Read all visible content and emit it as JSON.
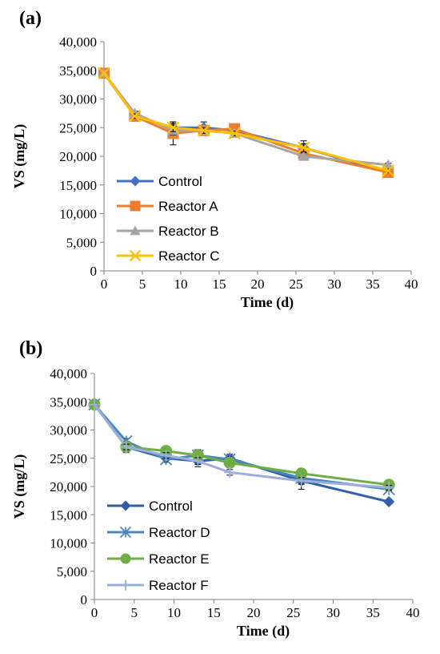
{
  "chart_data": [
    {
      "panel_label": "(a)",
      "type": "line",
      "xlabel": "Time (d)",
      "ylabel": "VS (mg/L)",
      "xlim": [
        0,
        40
      ],
      "ylim": [
        0,
        40000
      ],
      "x_ticks": [
        "0",
        "5",
        "10",
        "15",
        "20",
        "25",
        "30",
        "35",
        "40"
      ],
      "y_ticks": [
        "0",
        "5,000",
        "10,000",
        "15,000",
        "20,000",
        "25,000",
        "30,000",
        "35,000",
        "40,000"
      ],
      "grid": false,
      "legend_position": "bottom-left",
      "x": [
        0,
        4,
        9,
        13,
        17,
        26,
        37
      ],
      "series": [
        {
          "name": "Control",
          "color": "#4472C4",
          "marker": "diamond",
          "values": [
            34500,
            27000,
            25000,
            25000,
            24500,
            21500,
            17200
          ],
          "errors": [
            0,
            500,
            1000,
            1000,
            300,
            1200,
            300
          ]
        },
        {
          "name": "Reactor A",
          "color": "#ED7D31",
          "marker": "square",
          "values": [
            34500,
            27000,
            24000,
            24500,
            24800,
            20500,
            17200
          ],
          "errors": [
            0,
            400,
            2000,
            600,
            400,
            800,
            300
          ]
        },
        {
          "name": "Reactor B",
          "color": "#A5A5A5",
          "marker": "triangle",
          "values": [
            34500,
            27500,
            24500,
            24500,
            24000,
            20000,
            18500
          ],
          "errors": [
            0,
            300,
            800,
            500,
            400,
            600,
            300
          ]
        },
        {
          "name": "Reactor C",
          "color": "#FFC000",
          "marker": "x",
          "values": [
            34500,
            27000,
            25000,
            24500,
            24000,
            21500,
            17500
          ],
          "errors": [
            0,
            400,
            700,
            500,
            400,
            700,
            300
          ]
        }
      ]
    },
    {
      "panel_label": "(b)",
      "type": "line",
      "xlabel": "Time (d)",
      "ylabel": "VS (mg/L)",
      "xlim": [
        0,
        40
      ],
      "ylim": [
        0,
        40000
      ],
      "x_ticks": [
        "0",
        "5",
        "10",
        "15",
        "20",
        "25",
        "30",
        "35",
        "40"
      ],
      "y_ticks": [
        "0",
        "5,000",
        "10,000",
        "15,000",
        "20,000",
        "25,000",
        "30,000",
        "35,000",
        "40,000"
      ],
      "grid": false,
      "legend_position": "bottom-left",
      "x": [
        0,
        4,
        9,
        13,
        17,
        26,
        37
      ],
      "series": [
        {
          "name": "Control",
          "color": "#2E5FA8",
          "marker": "diamond",
          "values": [
            34500,
            27000,
            25000,
            24500,
            25000,
            21000,
            17300
          ],
          "errors": [
            0,
            1000,
            700,
            1000,
            700,
            1500,
            300
          ]
        },
        {
          "name": "Reactor D",
          "color": "#4A86C0",
          "marker": "asterisk",
          "values": [
            34500,
            28000,
            24800,
            25500,
            24800,
            21500,
            19500
          ],
          "errors": [
            0,
            500,
            500,
            900,
            500,
            600,
            300
          ]
        },
        {
          "name": "Reactor E",
          "color": "#70AD47",
          "marker": "circle",
          "values": [
            34500,
            27000,
            26300,
            25500,
            24200,
            22300,
            20300
          ],
          "errors": [
            0,
            500,
            400,
            1000,
            500,
            600,
            400
          ]
        },
        {
          "name": "Reactor F",
          "color": "#9DAEDB",
          "marker": "plus",
          "values": [
            34500,
            27000,
            25500,
            24500,
            22500,
            21000,
            19800
          ],
          "errors": [
            0,
            500,
            500,
            600,
            500,
            600,
            400
          ]
        }
      ]
    }
  ]
}
